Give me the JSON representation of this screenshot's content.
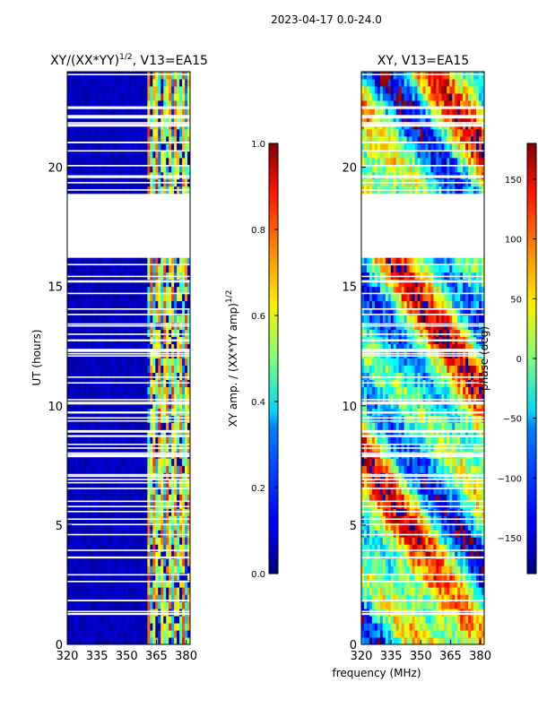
{
  "figure": {
    "suptitle": "2023-04-17 0.0-24.0",
    "xlabel": "frequency (MHz)"
  },
  "chart_data": [
    {
      "type": "heatmap",
      "title_main": "XY/(XX*YY)",
      "title_sup": "1/2",
      "title_tail": ", V13=EA15",
      "ylabel": "UT (hours)",
      "xlim": [
        320,
        382
      ],
      "ylim": [
        0,
        24
      ],
      "xticks": [
        320,
        335,
        350,
        365,
        380
      ],
      "yticks": [
        0,
        5,
        10,
        15,
        20
      ],
      "xticklabels": [
        "320",
        "335",
        "350",
        "365",
        "380"
      ],
      "yticklabels": [
        "0",
        "5",
        "10",
        "15",
        "20"
      ],
      "gap_hours": [
        [
          19.0,
          16.3
        ]
      ],
      "colorbar": {
        "label": "XY amp. / (XX*YY amp)^1/2",
        "label_main": "XY amp. / (XX*YY amp)",
        "label_sup": "1/2",
        "range": [
          0.0,
          1.0
        ],
        "ticks": [
          0.0,
          0.2,
          0.4,
          0.6,
          0.8,
          1.0
        ],
        "ticklabels": [
          "0.0",
          "0.2",
          "0.4",
          "0.6",
          "0.8",
          "1.0"
        ]
      }
    },
    {
      "type": "heatmap",
      "title": "XY, V13=EA15",
      "xlim": [
        320,
        382
      ],
      "ylim": [
        0,
        24
      ],
      "xticks": [
        320,
        335,
        350,
        365,
        380
      ],
      "yticks": [
        0,
        5,
        10,
        15,
        20
      ],
      "xticklabels": [
        "320",
        "335",
        "350",
        "365",
        "380"
      ],
      "yticklabels": [
        "0",
        "5",
        "10",
        "15",
        "20"
      ],
      "gap_hours": [
        [
          19.0,
          16.3
        ]
      ],
      "colorbar": {
        "label": "phase (deg)",
        "range": [
          -180,
          180
        ],
        "ticks": [
          -150,
          -100,
          -50,
          0,
          50,
          100,
          150
        ],
        "ticklabels": [
          "−150",
          "−100",
          "−50",
          "0",
          "50",
          "100",
          "150"
        ]
      }
    }
  ]
}
